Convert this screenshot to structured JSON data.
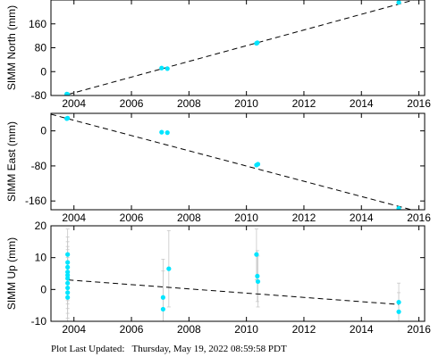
{
  "footer": "Plot Last Updated:   Thursday, May 19, 2022 08:59:58 PDT",
  "style": {
    "point_color": "#00e5ff",
    "trend_color": "#000000",
    "errorbar_color": "#c8c8c8"
  },
  "chart_data": [
    {
      "type": "scatter",
      "ylabel": "SIMM North (mm)",
      "xlim": [
        2003.2,
        2016.2
      ],
      "ylim": [
        -80,
        240
      ],
      "xticks": [
        2004,
        2006,
        2008,
        2010,
        2012,
        2014,
        2016
      ],
      "yticks": [
        -80,
        0,
        80,
        160
      ],
      "x_ticklabels_shown": true,
      "points": [
        {
          "x": 2003.75,
          "y": -75
        },
        {
          "x": 2003.78,
          "y": -76
        },
        {
          "x": 2007.05,
          "y": 12
        },
        {
          "x": 2007.25,
          "y": 10
        },
        {
          "x": 2010.35,
          "y": 95
        },
        {
          "x": 2010.38,
          "y": 97
        },
        {
          "x": 2015.3,
          "y": 232
        }
      ],
      "trend": [
        [
          2003.2,
          -92
        ],
        [
          2016.2,
          250
        ]
      ],
      "grid": false
    },
    {
      "type": "scatter",
      "ylabel": "SIMM East (mm)",
      "xlim": [
        2003.2,
        2016.2
      ],
      "ylim": [
        -180,
        40
      ],
      "xticks": [
        2004,
        2006,
        2008,
        2010,
        2012,
        2014,
        2016
      ],
      "yticks": [
        -160,
        -80,
        0
      ],
      "x_ticklabels_shown": true,
      "points": [
        {
          "x": 2003.75,
          "y": 28
        },
        {
          "x": 2003.78,
          "y": 29
        },
        {
          "x": 2007.05,
          "y": -3
        },
        {
          "x": 2007.25,
          "y": -4
        },
        {
          "x": 2010.35,
          "y": -78
        },
        {
          "x": 2010.4,
          "y": -76
        },
        {
          "x": 2015.3,
          "y": -177
        }
      ],
      "trend": [
        [
          2003.2,
          38
        ],
        [
          2016.2,
          -188
        ]
      ],
      "grid": false
    },
    {
      "type": "scatter",
      "ylabel": "SIMM Up (mm)",
      "xlim": [
        2003.2,
        2016.2
      ],
      "ylim": [
        -10,
        20
      ],
      "xticks": [
        2004,
        2006,
        2008,
        2010,
        2012,
        2014,
        2016
      ],
      "yticks": [
        -10,
        0,
        10,
        20
      ],
      "x_ticklabels_shown": true,
      "points": [
        {
          "x": 2003.78,
          "y": 11,
          "err": 8
        },
        {
          "x": 2003.78,
          "y": 8.5,
          "err": 8
        },
        {
          "x": 2003.78,
          "y": 7,
          "err": 8
        },
        {
          "x": 2003.78,
          "y": 5.5,
          "err": 8
        },
        {
          "x": 2003.78,
          "y": 4.5,
          "err": 8
        },
        {
          "x": 2003.78,
          "y": 3.5,
          "err": 8
        },
        {
          "x": 2003.78,
          "y": 2,
          "err": 8
        },
        {
          "x": 2003.78,
          "y": 0.5,
          "err": 8
        },
        {
          "x": 2003.78,
          "y": -1,
          "err": 8
        },
        {
          "x": 2003.78,
          "y": -2.5,
          "err": 8
        },
        {
          "x": 2007.1,
          "y": -2.5,
          "err": 12
        },
        {
          "x": 2007.1,
          "y": -6.2,
          "err": 12
        },
        {
          "x": 2007.3,
          "y": 6.5,
          "err": 12
        },
        {
          "x": 2010.35,
          "y": 11,
          "err": 8
        },
        {
          "x": 2010.38,
          "y": 4.2,
          "err": 8
        },
        {
          "x": 2010.4,
          "y": 2.5,
          "err": 8
        },
        {
          "x": 2015.3,
          "y": -4,
          "err": 6
        },
        {
          "x": 2015.3,
          "y": -7,
          "err": 6
        }
      ],
      "trend": [
        [
          2003.8,
          3
        ],
        [
          2015.3,
          -4.7
        ]
      ],
      "grid": false
    }
  ]
}
